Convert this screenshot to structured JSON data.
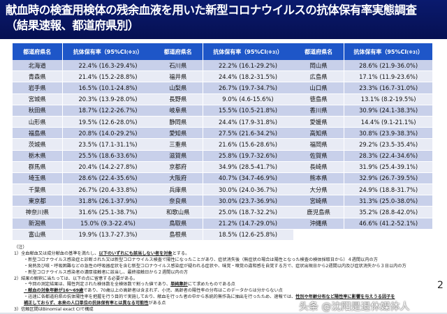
{
  "title": {
    "line1": "献血時の検査用検体の残余血液を用いた新型コロナウイルスの抗体保有率実態調査",
    "line2": "（結果速報、都道府県別）"
  },
  "table": {
    "header_pref": "都道府県名",
    "header_rate": "抗体保有率（95%CI",
    "header_note": "(※3)",
    "header_close": "）",
    "colors": {
      "header": "#1e56c8",
      "row_odd": "#c8d0ea",
      "row_even": "#e8ebf5"
    },
    "groups": [
      [
        [
          "北海道",
          "22.4% (16.3-29.4%)"
        ],
        [
          "青森県",
          "21.4% (15.2-28.8%)"
        ],
        [
          "岩手県",
          "16.5% (10.1-24.8%)"
        ],
        [
          "宮城県",
          "20.3% (13.9-28.0%)"
        ],
        [
          "秋田県",
          "18.7% (12.2-26.7%)"
        ],
        [
          "山形県",
          "19.5% (12.6-28.0%)"
        ],
        [
          "福島県",
          "20.8% (14.0-29.2%)"
        ],
        [
          "茨城県",
          "23.5% (17.1-31.1%)"
        ],
        [
          "栃木県",
          "25.5% (18.6-33.6%)"
        ],
        [
          "群馬県",
          "20.4% (14.2-27.8%)"
        ],
        [
          "埼玉県",
          "28.6% (22.4-35.6%)"
        ],
        [
          "千葉県",
          "26.7% (20.4-33.8%)"
        ],
        [
          "東京都",
          "31.8% (26.1-37.9%)"
        ],
        [
          "神奈川県",
          "31.6% (25.1-38.7%)"
        ],
        [
          "新潟県",
          "15.0% (9.3-22.4%)"
        ],
        [
          "富山県",
          "19.9% (13.7-27.3%)"
        ]
      ],
      [
        [
          "石川県",
          "22.2% (16.1-29.2%)"
        ],
        [
          "福井県",
          "24.4% (18.2-31.5%)"
        ],
        [
          "山梨県",
          "26.7% (19.7-34.7%)"
        ],
        [
          "長野県",
          "9.0% (4.6-15.6%)"
        ],
        [
          "岐阜県",
          "15.5% (10.5-21.8%)"
        ],
        [
          "静岡県",
          "24.4% (17.9-31.8%)"
        ],
        [
          "愛知県",
          "27.5% (21.6-34.2%)"
        ],
        [
          "三重県",
          "21.6% (15.6-28.6%)"
        ],
        [
          "滋賀県",
          "25.8% (19.7-32.6%)"
        ],
        [
          "京都府",
          "34.9% (28.5-41.7%)"
        ],
        [
          "大阪府",
          "40.7% (34.7-46.9%)"
        ],
        [
          "兵庫県",
          "30.0% (24.0-36.7%)"
        ],
        [
          "奈良県",
          "30.0% (23.7-36.9%)"
        ],
        [
          "和歌山県",
          "25.0% (18.7-32.2%)"
        ],
        [
          "鳥取県",
          "21.2% (14.7-29.0%)"
        ],
        [
          "島根県",
          "18.5% (12.6-25.8%)"
        ]
      ],
      [
        [
          "岡山県",
          "28.6% (21.9-36.0%)"
        ],
        [
          "広島県",
          "17.1% (11.9-23.6%)"
        ],
        [
          "山口県",
          "23.3% (16.7-31.0%)"
        ],
        [
          "徳島県",
          "13.1% (8.2-19.5%)"
        ],
        [
          "香川県",
          "30.9% (24.1-38.3%)"
        ],
        [
          "愛媛県",
          "14.4% (9.1-21.1%)"
        ],
        [
          "高知県",
          "30.8% (23.9-38.3%)"
        ],
        [
          "福岡県",
          "29.2% (23.5-35.4%)"
        ],
        [
          "佐賀県",
          "28.3% (22.4-34.6%)"
        ],
        [
          "長崎県",
          "31.9% (25.4-39.1%)"
        ],
        [
          "熊本県",
          "32.9% (26.7-39.5%)"
        ],
        [
          "大分県",
          "24.9% (18.8-31.7%)"
        ],
        [
          "宮崎県",
          "31.3% (25.0-38.0%)"
        ],
        [
          "鹿児島県",
          "35.2% (28.8-42.0%)"
        ],
        [
          "沖縄県",
          "46.6% (41.2-52.1%)"
        ]
      ]
    ]
  },
  "notes": {
    "heading": "（注）",
    "n1_pre": "1）全血献血又は成分献血の基準を満たし、",
    "n1_bold": "以下のいずれにも該当しない者を対象",
    "n1_post": "とする。",
    "n1_a": "・新型コロナウイルス感染症と診断された又は新型コロナウイルス検査で陽性になったことがあり、症状消失後（無症状の場合は陽性となった検査の検体採取日から）４週間以内の方",
    "n1_b": "・発熱及び咳・呼吸困難などの急性の呼吸器症状を含む新型コロナウイルス感染症が疑われる症状や、味覚・嗅覚の違和感を自覚する方で、症状出現日から2週間以内及び症状消失から３日以内の方",
    "n1_c": "・新型コロナウイルス感染者の濃厚接触者に該当し、最終接触日から２週間以内の方",
    "n2": "2）結果の解釈に当たっては、以下の点に留意する必要がある。",
    "n2_a_pre": "・今回の測定結果は、陽性判定された検体数を全検体数で割った値であり、",
    "n2_a_bold": "単純集計",
    "n2_a_post": "にて求めたものである点",
    "n2_b_bold": "・献血の対象年齢が16～69歳",
    "n2_b_post": "であり、70歳以上の高齢者は含まれず、小児、高齢者の陽性率の分布はこのデータからは分からない点",
    "n2_c_pre": "・迅速に各都道府県の抗体陽性率を把握を行う目的で実施しており、献血を行った者の中から系統的無作為に抽出を行ったため、速報では、",
    "n2_c_bold": "性別や年齢分布など陽性率に影響を与えうる因子を",
    "n2_d_bold": "補正しておらず、本来の人口単位の抗体保有率とは異なる可能性",
    "n2_d_post": "がある点",
    "n3": "3）信頼区間はBinomial exact CIで構成"
  },
  "page_number": "2",
  "watermark": "头条 @沈阳是退休媒体人"
}
